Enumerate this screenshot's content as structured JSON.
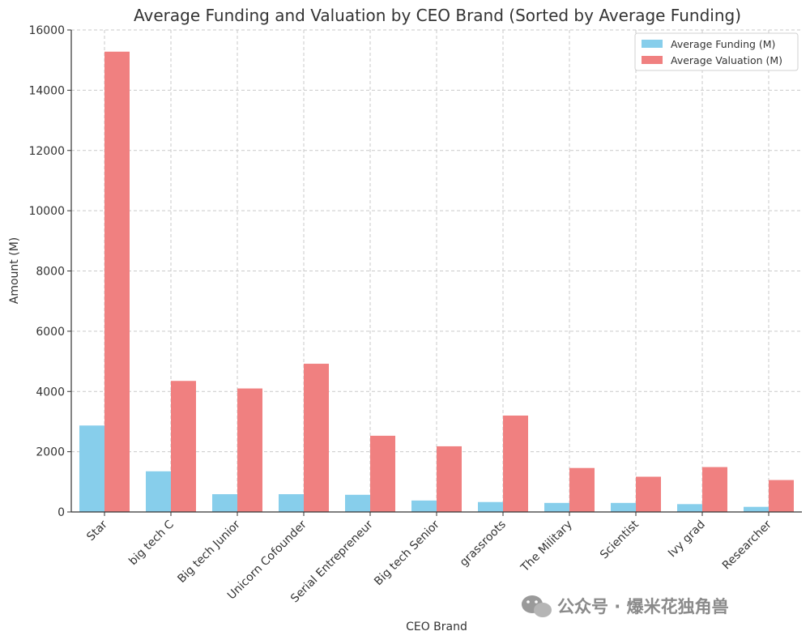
{
  "chart_data": {
    "type": "bar",
    "title": "Average Funding and Valuation by CEO Brand (Sorted by Average Funding)",
    "xlabel": "CEO Brand",
    "ylabel": "Amount (M)",
    "ylim": [
      0,
      16000
    ],
    "yticks": [
      0,
      2000,
      4000,
      6000,
      8000,
      10000,
      12000,
      14000,
      16000
    ],
    "grid": true,
    "legend_position": "top-right",
    "categories": [
      "Star",
      "big tech C",
      "Big tech Junior",
      "Unicorn Cofounder",
      "Serial Entrepreneur",
      "Big tech Senior",
      "grassroots",
      "The Military",
      "Scientist",
      "Ivy grad",
      "Researcher"
    ],
    "series": [
      {
        "name": "Average Funding (M)",
        "color": "#87ceeb",
        "values": [
          2870,
          1350,
          590,
          590,
          570,
          380,
          330,
          300,
          300,
          260,
          170
        ]
      },
      {
        "name": "Average Valuation (M)",
        "color": "#f08080",
        "values": [
          15280,
          4350,
          4100,
          4920,
          2530,
          2180,
          3200,
          1460,
          1170,
          1490,
          1060
        ]
      }
    ]
  },
  "watermark": {
    "text": "公众号 · 爆米花独角兽",
    "icon": "wechat-icon"
  }
}
